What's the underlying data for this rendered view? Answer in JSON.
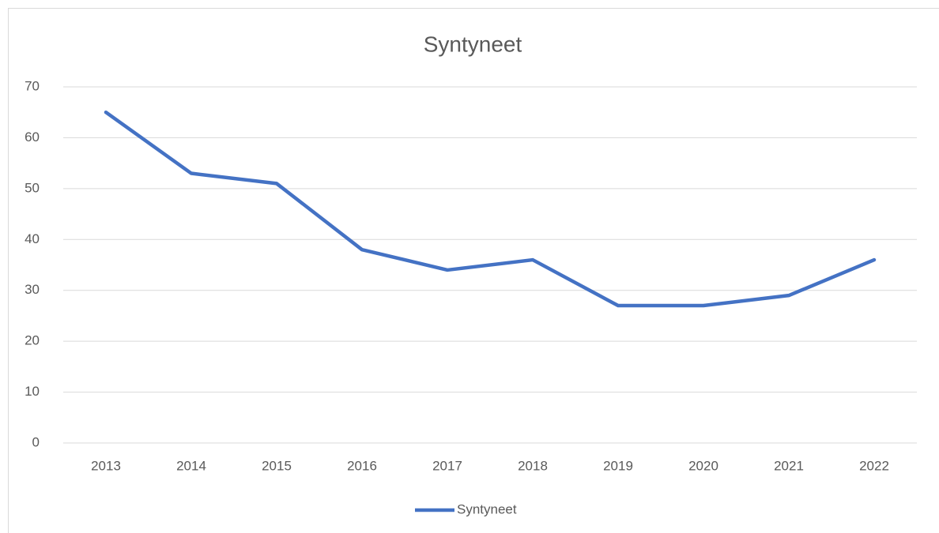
{
  "chart_data": {
    "type": "line",
    "title": "Syntyneet",
    "categories": [
      "2013",
      "2014",
      "2015",
      "2016",
      "2017",
      "2018",
      "2019",
      "2020",
      "2021",
      "2022"
    ],
    "series": [
      {
        "name": "Syntyneet",
        "color": "#4472c4",
        "values": [
          65,
          53,
          51,
          38,
          34,
          36,
          27,
          27,
          29,
          36
        ]
      }
    ],
    "ylim": [
      0,
      70
    ],
    "yticks": [
      0,
      10,
      20,
      30,
      40,
      50,
      60,
      70
    ],
    "grid": true,
    "legend": "bottom"
  }
}
